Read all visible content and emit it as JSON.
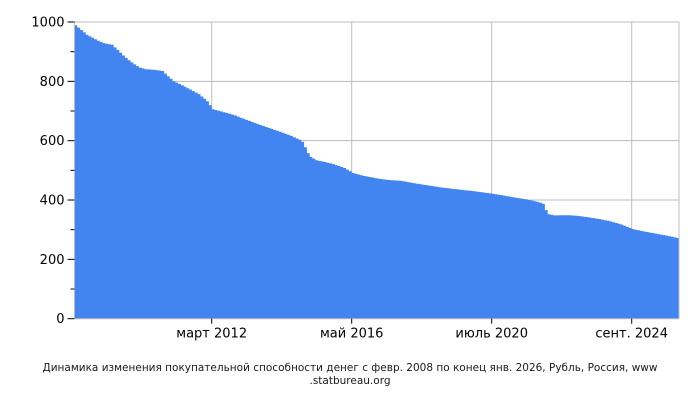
{
  "caption": {
    "line1": "Динамика изменения покупательной способности денег с февр. 2008 по конец янв. 2026, Рубль, Россия, www",
    "line2": ".statbureau.org"
  },
  "chart_data": {
    "type": "area",
    "title": "Динамика изменения покупательной способности денег с февр. 2008 по конец янв. 2026, Рубль, Россия, www.statbureau.org",
    "legend_position": "none",
    "grid": true,
    "x_ticks": [
      {
        "month": 49,
        "label": "март 2012"
      },
      {
        "month": 99,
        "label": "май 2016"
      },
      {
        "month": 149,
        "label": "июль 2020"
      },
      {
        "month": 199,
        "label": "сент. 2024"
      }
    ],
    "y_axis": {
      "min": 0,
      "max": 1000,
      "major_step": 200,
      "minor_step": 100,
      "labels": [
        "0",
        "200",
        "400",
        "600",
        "800",
        "1000"
      ]
    },
    "x_range_months": 215,
    "points": [
      [
        0,
        989
      ],
      [
        2,
        973
      ],
      [
        4,
        957
      ],
      [
        6,
        947
      ],
      [
        8,
        937
      ],
      [
        10,
        929
      ],
      [
        13,
        923
      ],
      [
        15,
        906
      ],
      [
        17,
        887
      ],
      [
        19,
        871
      ],
      [
        21,
        857
      ],
      [
        23,
        846
      ],
      [
        25,
        841
      ],
      [
        28,
        839
      ],
      [
        31,
        835
      ],
      [
        33,
        817
      ],
      [
        35,
        800
      ],
      [
        38,
        787
      ],
      [
        41,
        772
      ],
      [
        44,
        757
      ],
      [
        47,
        733
      ],
      [
        49,
        706
      ],
      [
        53,
        696
      ],
      [
        57,
        685
      ],
      [
        61,
        670
      ],
      [
        65,
        656
      ],
      [
        69,
        643
      ],
      [
        73,
        630
      ],
      [
        77,
        616
      ],
      [
        80,
        603
      ],
      [
        81,
        596
      ],
      [
        82,
        578
      ],
      [
        83,
        558
      ],
      [
        84,
        545
      ],
      [
        86,
        534
      ],
      [
        89,
        528
      ],
      [
        92,
        521
      ],
      [
        96,
        508
      ],
      [
        99,
        491
      ],
      [
        103,
        481
      ],
      [
        107,
        474
      ],
      [
        111,
        468
      ],
      [
        116,
        465
      ],
      [
        120,
        458
      ],
      [
        124,
        452
      ],
      [
        130,
        443
      ],
      [
        136,
        436
      ],
      [
        142,
        430
      ],
      [
        149,
        421
      ],
      [
        153,
        415
      ],
      [
        157,
        408
      ],
      [
        161,
        402
      ],
      [
        164,
        396
      ],
      [
        166,
        391
      ],
      [
        167,
        387
      ],
      [
        168,
        366
      ],
      [
        169,
        352
      ],
      [
        171,
        348
      ],
      [
        175,
        349
      ],
      [
        179,
        347
      ],
      [
        183,
        342
      ],
      [
        187,
        336
      ],
      [
        191,
        328
      ],
      [
        195,
        317
      ],
      [
        199,
        302
      ],
      [
        203,
        294
      ],
      [
        207,
        287
      ],
      [
        211,
        280
      ],
      [
        215,
        272
      ]
    ],
    "colors": {
      "fill": "#4285f0",
      "grid": "#bcbcbc",
      "tick": "#000000",
      "text": "#000000"
    }
  }
}
